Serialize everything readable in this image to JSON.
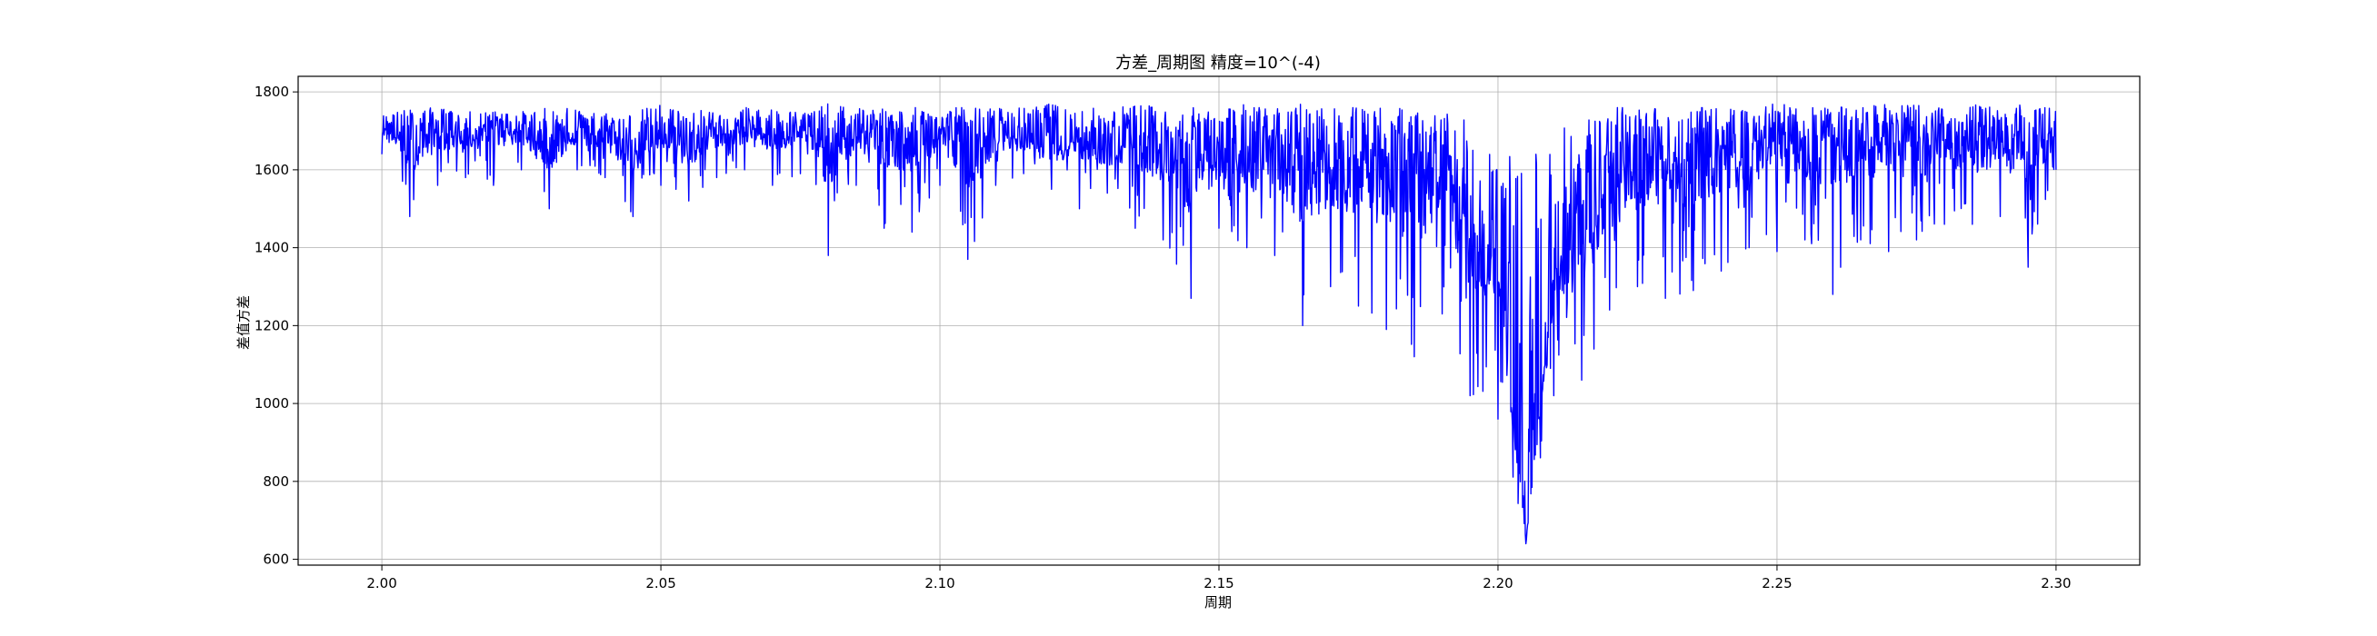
{
  "chart_data": {
    "type": "line",
    "title": "方差_周期图 精度=10^(-4)",
    "xlabel": "周期",
    "ylabel": "差值方差",
    "xlim": [
      1.985,
      2.315
    ],
    "ylim": [
      585,
      1840
    ],
    "xticks": [
      2.0,
      2.05,
      2.1,
      2.15,
      2.2,
      2.25,
      2.3
    ],
    "xtick_labels": [
      "2.00",
      "2.05",
      "2.10",
      "2.15",
      "2.20",
      "2.25",
      "2.30"
    ],
    "yticks": [
      600,
      800,
      1000,
      1200,
      1400,
      1600,
      1800
    ],
    "ytick_labels": [
      "600",
      "800",
      "1000",
      "1200",
      "1400",
      "1600",
      "1800"
    ],
    "grid": true,
    "series_color": "#0000ff",
    "series": [
      {
        "x": [
          2.0,
          2.005,
          2.01,
          2.015,
          2.02,
          2.025,
          2.03,
          2.035,
          2.04,
          2.045,
          2.05,
          2.055,
          2.06,
          2.065,
          2.07,
          2.075,
          2.08,
          2.085,
          2.09,
          2.095,
          2.1,
          2.105,
          2.11,
          2.115,
          2.12,
          2.125,
          2.13,
          2.135,
          2.14,
          2.145,
          2.15,
          2.155,
          2.16,
          2.165,
          2.17,
          2.175,
          2.18,
          2.185,
          2.19,
          2.195,
          2.2,
          2.205,
          2.21,
          2.215,
          2.22,
          2.225,
          2.23,
          2.235,
          2.24,
          2.245,
          2.25,
          2.255,
          2.26,
          2.265,
          2.27,
          2.275,
          2.28,
          2.285,
          2.29,
          2.295,
          2.3
        ],
        "y": [
          1720,
          1650,
          1700,
          1690,
          1710,
          1700,
          1650,
          1700,
          1690,
          1650,
          1700,
          1650,
          1700,
          1700,
          1690,
          1700,
          1650,
          1700,
          1690,
          1650,
          1700,
          1650,
          1690,
          1680,
          1650,
          1690,
          1650,
          1680,
          1650,
          1600,
          1650,
          1600,
          1650,
          1580,
          1620,
          1600,
          1600,
          1550,
          1600,
          1450,
          1400,
          650,
          1350,
          1400,
          1550,
          1600,
          1650,
          1600,
          1650,
          1650,
          1700,
          1650,
          1700,
          1650,
          1700,
          1650,
          1700,
          1650,
          1690,
          1650,
          1700
        ],
        "min_envelope": [
          1640,
          1480,
          1560,
          1580,
          1560,
          1600,
          1500,
          1600,
          1580,
          1480,
          1560,
          1520,
          1580,
          1600,
          1560,
          1590,
          1380,
          1560,
          1450,
          1440,
          1560,
          1370,
          1560,
          1590,
          1550,
          1500,
          1540,
          1450,
          1420,
          1270,
          1450,
          1400,
          1380,
          1200,
          1300,
          1250,
          1190,
          1120,
          1230,
          1020,
          960,
          640,
          1020,
          1060,
          1240,
          1300,
          1270,
          1290,
          1340,
          1400,
          1390,
          1420,
          1280,
          1420,
          1390,
          1420,
          1460,
          1460,
          1480,
          1350,
          1600
        ],
        "max_envelope": [
          1740,
          1760,
          1760,
          1750,
          1750,
          1750,
          1760,
          1760,
          1750,
          1750,
          1770,
          1760,
          1750,
          1760,
          1760,
          1750,
          1770,
          1760,
          1760,
          1760,
          1760,
          1760,
          1760,
          1760,
          1770,
          1760,
          1760,
          1770,
          1760,
          1760,
          1760,
          1770,
          1760,
          1770,
          1760,
          1760,
          1770,
          1750,
          1760,
          1720,
          1680,
          1610,
          1700,
          1740,
          1760,
          1770,
          1760,
          1760,
          1760,
          1760,
          1770,
          1760,
          1770,
          1760,
          1770,
          1770,
          1760,
          1770,
          1760,
          1770,
          1760
        ]
      }
    ]
  }
}
